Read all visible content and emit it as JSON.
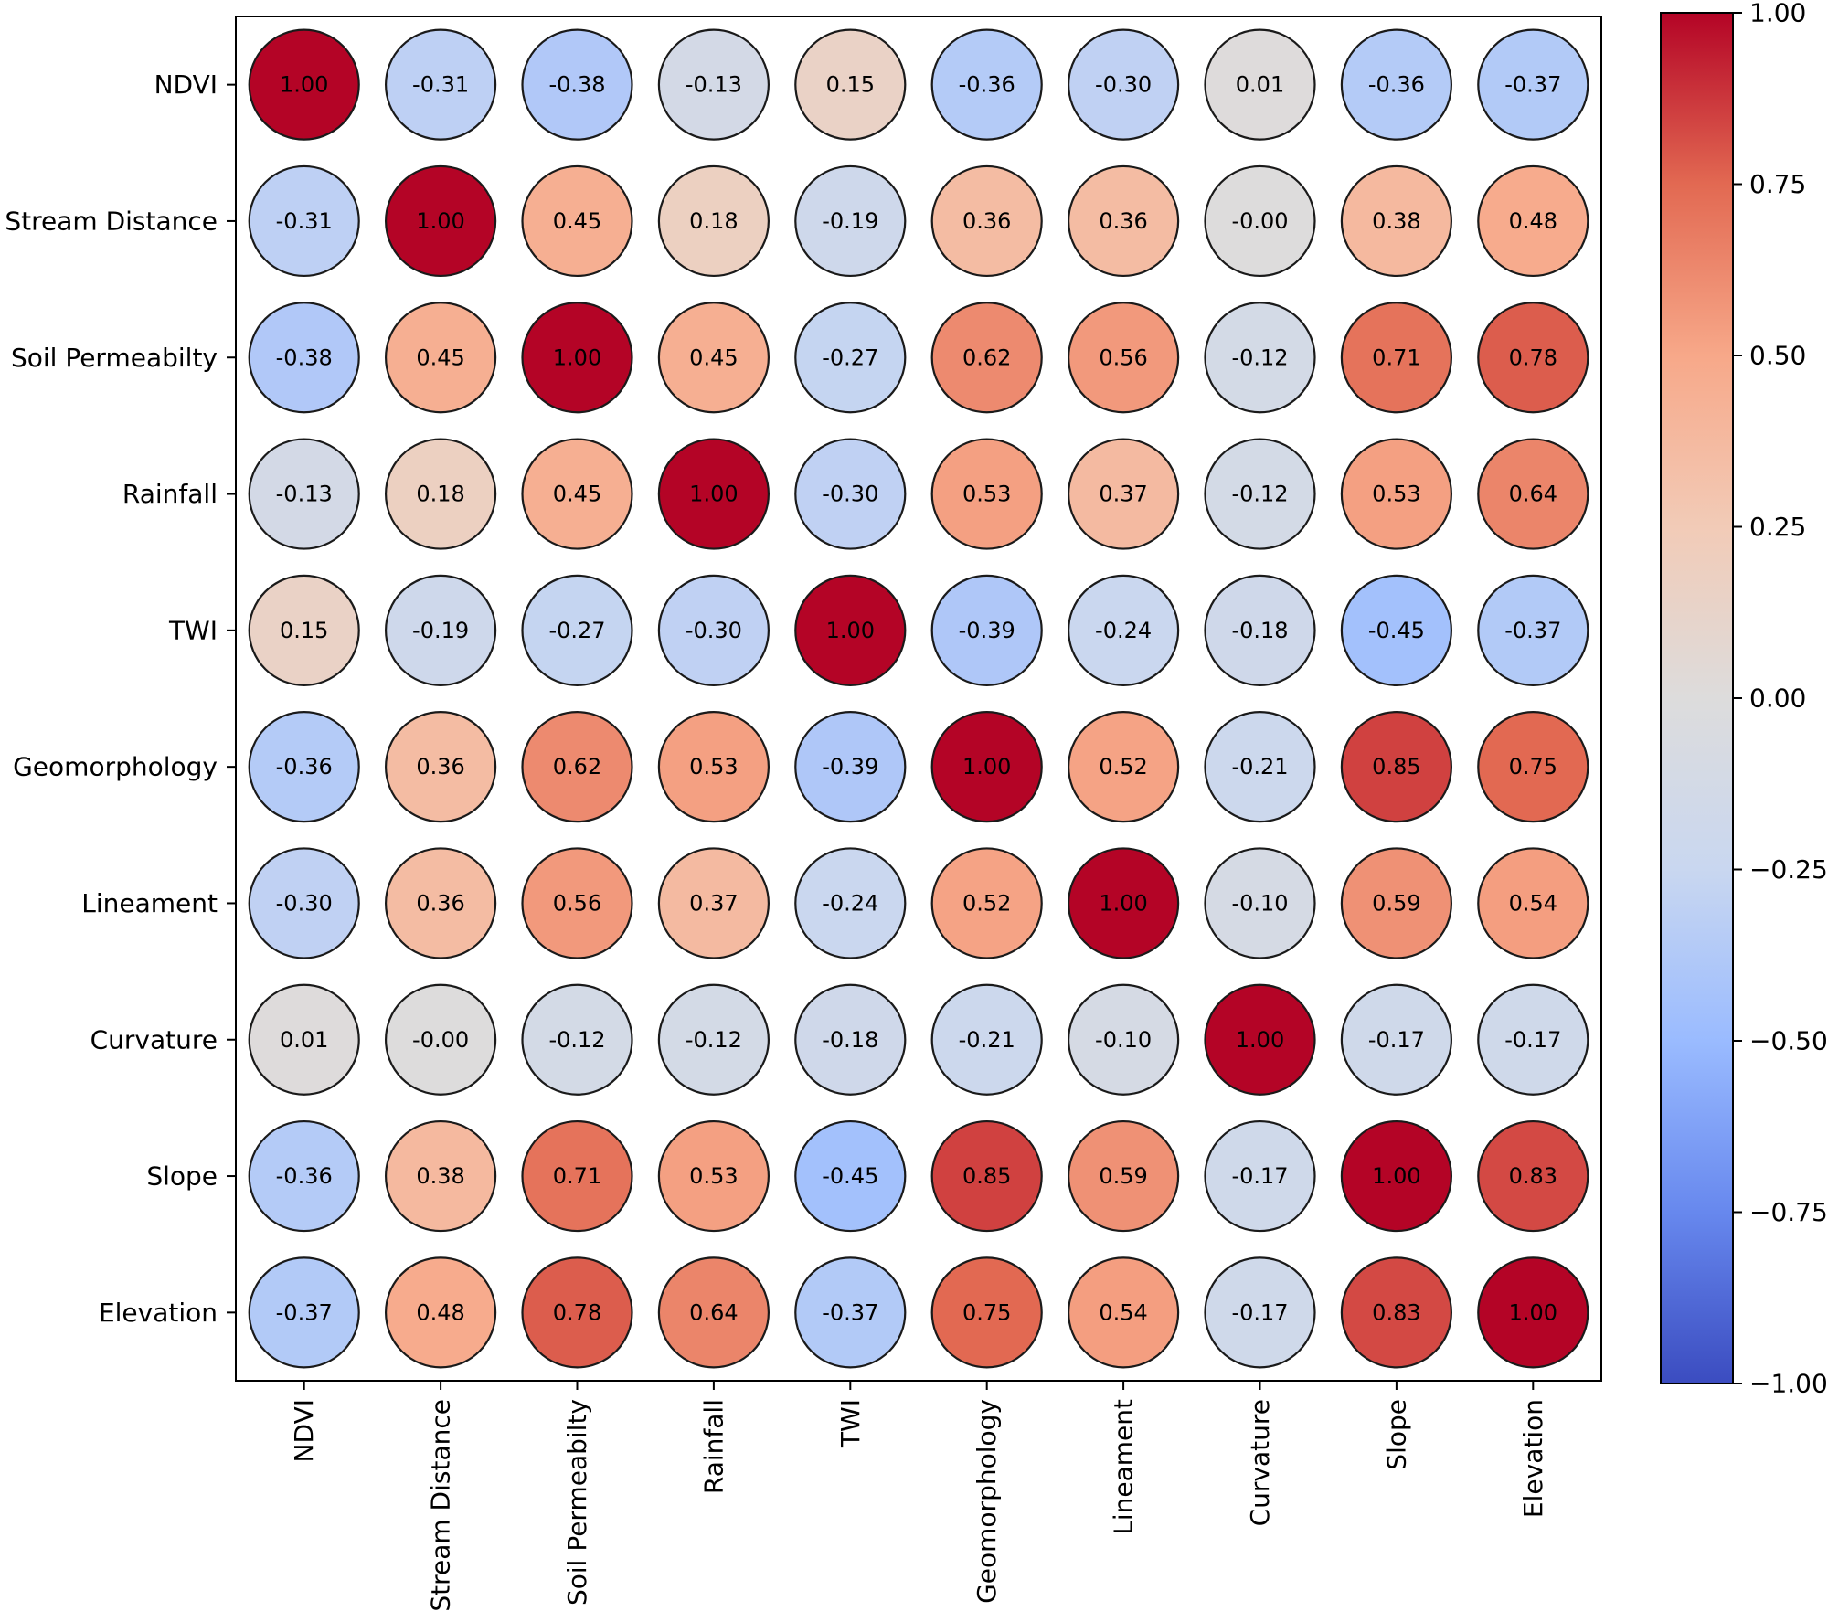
{
  "chart_data": {
    "type": "heatmap",
    "style": "circle-correlation-matrix",
    "title": "",
    "xlabel": "",
    "ylabel": "",
    "variables": [
      "NDVI",
      "Stream Distance",
      "Soil Permeabilty",
      "Rainfall",
      "TWI",
      "Geomorphology",
      "Lineament",
      "Curvature",
      "Slope",
      "Elevation"
    ],
    "matrix": [
      [
        1.0,
        -0.31,
        -0.38,
        -0.13,
        0.15,
        -0.36,
        -0.3,
        0.01,
        -0.36,
        -0.37
      ],
      [
        -0.31,
        1.0,
        0.45,
        0.18,
        -0.19,
        0.36,
        0.36,
        -0.0,
        0.38,
        0.48
      ],
      [
        -0.38,
        0.45,
        1.0,
        0.45,
        -0.27,
        0.62,
        0.56,
        -0.12,
        0.71,
        0.78
      ],
      [
        -0.13,
        0.18,
        0.45,
        1.0,
        -0.3,
        0.53,
        0.37,
        -0.12,
        0.53,
        0.64
      ],
      [
        0.15,
        -0.19,
        -0.27,
        -0.3,
        1.0,
        -0.39,
        -0.24,
        -0.18,
        -0.45,
        -0.37
      ],
      [
        -0.36,
        0.36,
        0.62,
        0.53,
        -0.39,
        1.0,
        0.52,
        -0.21,
        0.85,
        0.75
      ],
      [
        -0.3,
        0.36,
        0.56,
        0.37,
        -0.24,
        0.52,
        1.0,
        -0.1,
        0.59,
        0.54
      ],
      [
        0.01,
        -0.0,
        -0.12,
        -0.12,
        -0.18,
        -0.21,
        -0.1,
        1.0,
        -0.17,
        -0.17
      ],
      [
        -0.36,
        0.38,
        0.71,
        0.53,
        -0.45,
        0.85,
        0.59,
        -0.17,
        1.0,
        0.83
      ],
      [
        -0.37,
        0.48,
        0.78,
        0.64,
        -0.37,
        0.75,
        0.54,
        -0.17,
        0.83,
        1.0
      ]
    ],
    "value_labels": [
      [
        "1.00",
        "-0.31",
        "-0.38",
        "-0.13",
        "0.15",
        "-0.36",
        "-0.30",
        "0.01",
        "-0.36",
        "-0.37"
      ],
      [
        "-0.31",
        "1.00",
        "0.45",
        "0.18",
        "-0.19",
        "0.36",
        "0.36",
        "-0.00",
        "0.38",
        "0.48"
      ],
      [
        "-0.38",
        "0.45",
        "1.00",
        "0.45",
        "-0.27",
        "0.62",
        "0.56",
        "-0.12",
        "0.71",
        "0.78"
      ],
      [
        "-0.13",
        "0.18",
        "0.45",
        "1.00",
        "-0.30",
        "0.53",
        "0.37",
        "-0.12",
        "0.53",
        "0.64"
      ],
      [
        "0.15",
        "-0.19",
        "-0.27",
        "-0.30",
        "1.00",
        "-0.39",
        "-0.24",
        "-0.18",
        "-0.45",
        "-0.37"
      ],
      [
        "-0.36",
        "0.36",
        "0.62",
        "0.53",
        "-0.39",
        "1.00",
        "0.52",
        "-0.21",
        "0.85",
        "0.75"
      ],
      [
        "-0.30",
        "0.36",
        "0.56",
        "0.37",
        "-0.24",
        "0.52",
        "1.00",
        "-0.10",
        "0.59",
        "0.54"
      ],
      [
        "0.01",
        "-0.00",
        "-0.12",
        "-0.12",
        "-0.18",
        "-0.21",
        "-0.10",
        "1.00",
        "-0.17",
        "-0.17"
      ],
      [
        "-0.36",
        "0.38",
        "0.71",
        "0.53",
        "-0.45",
        "0.85",
        "0.59",
        "-0.17",
        "1.00",
        "0.83"
      ],
      [
        "-0.37",
        "0.48",
        "0.78",
        "0.64",
        "-0.37",
        "0.75",
        "0.54",
        "-0.17",
        "0.83",
        "1.00"
      ]
    ],
    "colorbar": {
      "range": [
        -1.0,
        1.0
      ],
      "ticks": [
        1.0,
        0.75,
        0.5,
        0.25,
        0.0,
        -0.25,
        -0.5,
        -0.75,
        -1.0
      ],
      "tick_labels": [
        "1.00",
        "0.75",
        "0.50",
        "0.25",
        "0.00",
        "−0.25",
        "−0.50",
        "−0.75",
        "−1.00"
      ],
      "colormap": "coolwarm",
      "colormap_stops": [
        "#3b4cc0",
        "#6788ee",
        "#9abbff",
        "#c9d7f0",
        "#dddcdc",
        "#f2cbb7",
        "#f7a889",
        "#e26952",
        "#b40426"
      ]
    },
    "grid": false,
    "legend": "colorbar-right"
  }
}
